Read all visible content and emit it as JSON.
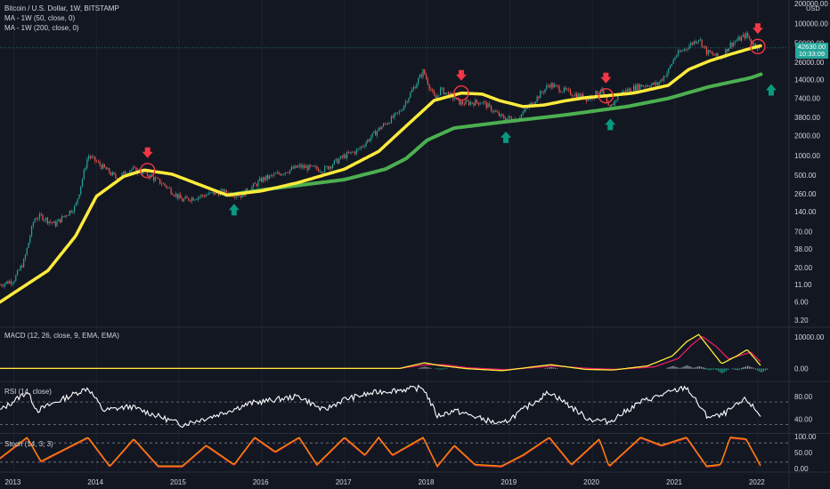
{
  "legend": {
    "main_title": "Bitcoin / U.S. Dollar, 1W, BITSTAMP",
    "ma50": "MA - 1W (50, close, 0)",
    "ma200": "MA - 1W (200, close, 0)",
    "macd": "MACD (12, 26, close, 9, EMA, EMA)",
    "rsi": "RSI (14, close)",
    "stoch": "Stoch (14, 3, 3)"
  },
  "price_axis": {
    "currency": "USD",
    "current_price": "42630.00",
    "countdown": "10:33:09"
  },
  "colors": {
    "background": "#131722",
    "up": "#26a69a",
    "down": "#ef5350",
    "ma50": "#ffeb3b",
    "ma200": "#4caf50",
    "macd_line": "#ffeb3b",
    "signal_line": "#e91e63",
    "rsi_line": "#ffffff",
    "stoch_k": "#ff9800",
    "stoch_d": "#e53935",
    "arrow_down": "#f23645",
    "arrow_up": "#089981"
  },
  "chart_data": [
    {
      "type": "candlestick",
      "name": "price",
      "yscale": "log",
      "ylim": [
        3.2,
        200000
      ],
      "y_ticks": [
        "200000.00",
        "100000.00",
        "50000.00",
        "26000.00",
        "14000.00",
        "7400.00",
        "3800.00",
        "2000.00",
        "1000.00",
        "500.00",
        "260.00",
        "140.00",
        "70.00",
        "38.00",
        "20.00",
        "11.00",
        "6.00",
        "3.20"
      ],
      "x_ticks": [
        "2013",
        "2014",
        "2015",
        "2016",
        "2017",
        "2018",
        "2019",
        "2020",
        "2021",
        "2022"
      ],
      "close_points": [
        [
          "2012-11-01",
          11
        ],
        [
          "2013-01-01",
          13
        ],
        [
          "2013-02-15",
          25
        ],
        [
          "2013-04-01",
          110
        ],
        [
          "2013-05-01",
          120
        ],
        [
          "2013-07-01",
          90
        ],
        [
          "2013-10-01",
          170
        ],
        [
          "2013-11-25",
          1000
        ],
        [
          "2014-01-01",
          800
        ],
        [
          "2014-04-01",
          450
        ],
        [
          "2014-06-01",
          620
        ],
        [
          "2014-08-01",
          550
        ],
        [
          "2014-11-01",
          350
        ],
        [
          "2015-01-15",
          210
        ],
        [
          "2015-04-01",
          240
        ],
        [
          "2015-07-01",
          280
        ],
        [
          "2015-10-01",
          250
        ],
        [
          "2015-11-15",
          320
        ],
        [
          "2016-01-01",
          430
        ],
        [
          "2016-06-15",
          680
        ],
        [
          "2016-10-01",
          610
        ],
        [
          "2017-01-01",
          980
        ],
        [
          "2017-03-01",
          1200
        ],
        [
          "2017-06-01",
          2500
        ],
        [
          "2017-09-01",
          4500
        ],
        [
          "2017-12-15",
          19000
        ],
        [
          "2018-02-05",
          7000
        ],
        [
          "2018-03-01",
          10000
        ],
        [
          "2018-06-01",
          6200
        ],
        [
          "2018-09-01",
          6500
        ],
        [
          "2018-11-25",
          3800
        ],
        [
          "2019-02-01",
          3500
        ],
        [
          "2019-06-25",
          12000
        ],
        [
          "2019-09-01",
          9500
        ],
        [
          "2019-12-15",
          7200
        ],
        [
          "2020-02-10",
          10000
        ],
        [
          "2020-03-15",
          4900
        ],
        [
          "2020-05-01",
          8800
        ],
        [
          "2020-08-01",
          11500
        ],
        [
          "2020-10-15",
          12000
        ],
        [
          "2020-12-01",
          19000
        ],
        [
          "2021-01-01",
          32000
        ],
        [
          "2021-04-15",
          60000
        ],
        [
          "2021-05-20",
          37000
        ],
        [
          "2021-07-20",
          30000
        ],
        [
          "2021-09-01",
          48000
        ],
        [
          "2021-11-10",
          67000
        ],
        [
          "2021-12-15",
          48000
        ],
        [
          "2022-01-15",
          42630
        ]
      ],
      "ma50": [
        [
          "2012-11-01",
          6
        ],
        [
          "2013-06-01",
          18
        ],
        [
          "2013-10-01",
          60
        ],
        [
          "2014-01-01",
          240
        ],
        [
          "2014-05-01",
          480
        ],
        [
          "2014-08-01",
          600
        ],
        [
          "2014-12-01",
          520
        ],
        [
          "2015-05-01",
          330
        ],
        [
          "2015-08-01",
          250
        ],
        [
          "2016-01-01",
          290
        ],
        [
          "2016-06-01",
          380
        ],
        [
          "2017-01-01",
          620
        ],
        [
          "2017-06-01",
          1150
        ],
        [
          "2017-10-01",
          2800
        ],
        [
          "2018-02-01",
          6800
        ],
        [
          "2018-06-01",
          8800
        ],
        [
          "2018-09-01",
          8500
        ],
        [
          "2018-11-15",
          6800
        ],
        [
          "2019-03-01",
          5500
        ],
        [
          "2019-06-01",
          5800
        ],
        [
          "2019-09-01",
          6700
        ],
        [
          "2019-12-01",
          7500
        ],
        [
          "2020-03-01",
          8000
        ],
        [
          "2020-07-01",
          8800
        ],
        [
          "2020-12-01",
          11500
        ],
        [
          "2021-03-01",
          20000
        ],
        [
          "2021-06-01",
          27000
        ],
        [
          "2021-09-01",
          34000
        ],
        [
          "2021-12-01",
          42000
        ],
        [
          "2022-01-15",
          46000
        ]
      ],
      "ma200": [
        [
          "2015-08-01",
          250
        ],
        [
          "2016-01-01",
          300
        ],
        [
          "2016-08-01",
          370
        ],
        [
          "2017-01-01",
          430
        ],
        [
          "2017-07-01",
          620
        ],
        [
          "2017-10-01",
          900
        ],
        [
          "2018-01-01",
          1700
        ],
        [
          "2018-05-01",
          2600
        ],
        [
          "2019-01-01",
          3300
        ],
        [
          "2019-09-01",
          4100
        ],
        [
          "2020-06-01",
          5500
        ],
        [
          "2020-12-01",
          7300
        ],
        [
          "2021-06-01",
          11000
        ],
        [
          "2021-12-01",
          15000
        ],
        [
          "2022-01-15",
          17000
        ]
      ],
      "markers_down": [
        "2014-08-15",
        "2018-06-01",
        "2020-03-01",
        "2022-01-01"
      ],
      "markers_up": [
        "2015-09-01",
        "2018-12-15",
        "2020-03-20",
        "2022-03-01"
      ]
    },
    {
      "type": "line",
      "name": "MACD",
      "ylim": [
        -3000,
        12000
      ],
      "y_ticks": [
        "10000.00",
        "0.00"
      ],
      "series": [
        {
          "name": "macd",
          "points": [
            [
              "2012-11-01",
              0
            ],
            [
              "2017-09-01",
              0
            ],
            [
              "2017-12-20",
              1800
            ],
            [
              "2018-03-01",
              900
            ],
            [
              "2018-07-01",
              -100
            ],
            [
              "2018-12-01",
              -700
            ],
            [
              "2019-07-01",
              1200
            ],
            [
              "2019-12-01",
              -300
            ],
            [
              "2020-04-01",
              -500
            ],
            [
              "2020-09-01",
              800
            ],
            [
              "2020-12-20",
              4000
            ],
            [
              "2021-02-20",
              8500
            ],
            [
              "2021-04-15",
              10800
            ],
            [
              "2021-06-01",
              6500
            ],
            [
              "2021-07-25",
              1500
            ],
            [
              "2021-10-01",
              4000
            ],
            [
              "2021-11-15",
              6000
            ],
            [
              "2022-01-15",
              800
            ]
          ]
        },
        {
          "name": "signal",
          "points": [
            [
              "2012-11-01",
              0
            ],
            [
              "2017-09-01",
              0
            ],
            [
              "2017-12-25",
              1200
            ],
            [
              "2018-03-15",
              1200
            ],
            [
              "2018-07-01",
              200
            ],
            [
              "2018-12-15",
              -400
            ],
            [
              "2019-07-15",
              800
            ],
            [
              "2019-12-15",
              0
            ],
            [
              "2020-04-15",
              -300
            ],
            [
              "2020-10-01",
              500
            ],
            [
              "2021-01-15",
              3200
            ],
            [
              "2021-03-15",
              7500
            ],
            [
              "2021-05-01",
              10200
            ],
            [
              "2021-07-01",
              7000
            ],
            [
              "2021-08-25",
              3000
            ],
            [
              "2021-11-01",
              4500
            ],
            [
              "2021-12-01",
              5200
            ],
            [
              "2022-01-15",
              2000
            ]
          ]
        }
      ],
      "histogram": [
        [
          "2017-12-20",
          600
        ],
        [
          "2018-03-01",
          -300
        ],
        [
          "2019-07-01",
          400
        ],
        [
          "2020-12-20",
          800
        ],
        [
          "2021-02-20",
          1000
        ],
        [
          "2021-04-15",
          700
        ],
        [
          "2021-06-01",
          -500
        ],
        [
          "2021-07-25",
          -1500
        ],
        [
          "2021-10-01",
          -500
        ],
        [
          "2021-11-15",
          800
        ],
        [
          "2022-01-15",
          -1200
        ]
      ]
    },
    {
      "type": "line",
      "name": "RSI",
      "ylim": [
        20,
        100
      ],
      "y_ticks": [
        "80.00",
        "40.00"
      ],
      "bands": [
        70,
        30
      ],
      "points": [
        [
          "2012-11-01",
          55
        ],
        [
          "2013-03-01",
          88
        ],
        [
          "2013-04-15",
          55
        ],
        [
          "2013-11-25",
          95
        ],
        [
          "2014-02-01",
          55
        ],
        [
          "2014-06-01",
          62
        ],
        [
          "2015-01-15",
          30
        ],
        [
          "2015-06-01",
          45
        ],
        [
          "2015-11-15",
          68
        ],
        [
          "2016-06-15",
          80
        ],
        [
          "2016-10-01",
          55
        ],
        [
          "2017-01-01",
          75
        ],
        [
          "2017-06-01",
          88
        ],
        [
          "2017-12-15",
          95
        ],
        [
          "2018-02-15",
          45
        ],
        [
          "2018-05-01",
          55
        ],
        [
          "2018-11-25",
          30
        ],
        [
          "2019-06-25",
          88
        ],
        [
          "2019-12-15",
          40
        ],
        [
          "2020-03-15",
          35
        ],
        [
          "2020-08-01",
          70
        ],
        [
          "2020-12-15",
          88
        ],
        [
          "2021-02-20",
          96
        ],
        [
          "2021-05-20",
          45
        ],
        [
          "2021-07-20",
          45
        ],
        [
          "2021-11-10",
          75
        ],
        [
          "2022-01-15",
          45
        ]
      ]
    },
    {
      "type": "line",
      "name": "Stoch",
      "ylim": [
        0,
        100
      ],
      "y_ticks": [
        "100.00",
        "50.00",
        "0.00"
      ],
      "bands": [
        80,
        20
      ],
      "series": [
        {
          "name": "k",
          "points": [
            [
              "2012-11-01",
              30
            ],
            [
              "2013-03-01",
              95
            ],
            [
              "2013-05-01",
              20
            ],
            [
              "2013-11-25",
              95
            ],
            [
              "2014-03-01",
              5
            ],
            [
              "2014-06-15",
              90
            ],
            [
              "2014-10-01",
              5
            ],
            [
              "2015-01-15",
              5
            ],
            [
              "2015-05-01",
              70
            ],
            [
              "2015-09-01",
              10
            ],
            [
              "2015-12-01",
              95
            ],
            [
              "2016-03-01",
              50
            ],
            [
              "2016-06-15",
              95
            ],
            [
              "2016-09-01",
              10
            ],
            [
              "2017-01-01",
              95
            ],
            [
              "2017-04-01",
              40
            ],
            [
              "2017-06-01",
              95
            ],
            [
              "2017-08-01",
              40
            ],
            [
              "2017-12-15",
              95
            ],
            [
              "2018-02-15",
              5
            ],
            [
              "2018-05-01",
              70
            ],
            [
              "2018-08-01",
              10
            ],
            [
              "2018-11-25",
              5
            ],
            [
              "2019-03-01",
              40
            ],
            [
              "2019-06-25",
              95
            ],
            [
              "2019-10-01",
              10
            ],
            [
              "2020-02-01",
              90
            ],
            [
              "2020-03-15",
              5
            ],
            [
              "2020-08-01",
              95
            ],
            [
              "2020-11-01",
              70
            ],
            [
              "2021-02-20",
              95
            ],
            [
              "2021-05-20",
              5
            ],
            [
              "2021-07-20",
              10
            ],
            [
              "2021-09-01",
              95
            ],
            [
              "2021-11-10",
              90
            ],
            [
              "2022-01-15",
              5
            ]
          ]
        }
      ]
    }
  ]
}
